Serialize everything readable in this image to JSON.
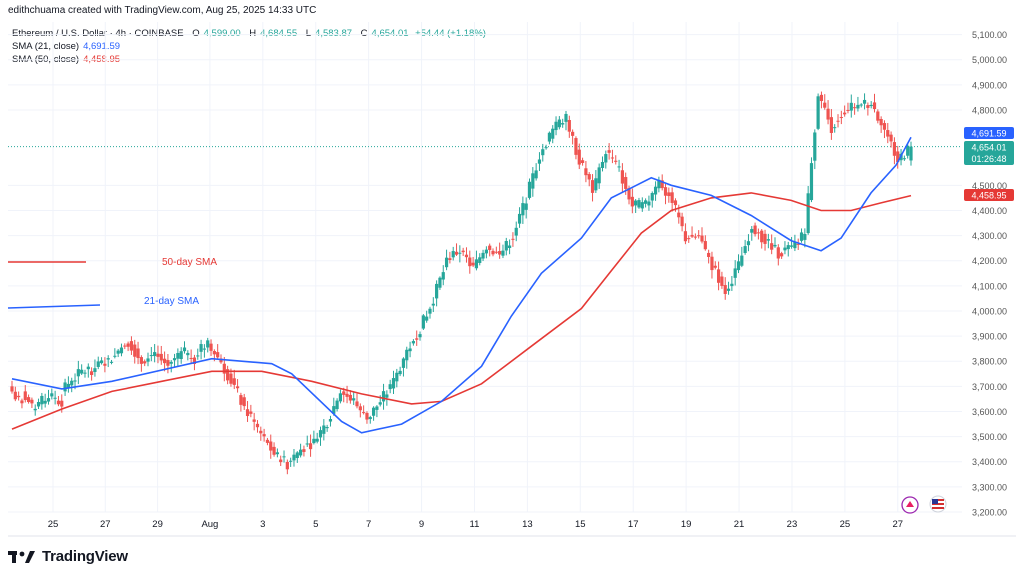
{
  "header": {
    "attribution": "edithchuama created with TradingView.com, Aug 25, 2025 14:33 UTC"
  },
  "legend": {
    "symbol": "Ethereum / U.S. Dollar · 4h · COINBASE",
    "o_label": "O",
    "o_value": "4,599.00",
    "h_label": "H",
    "h_value": "4,684.55",
    "l_label": "L",
    "l_value": "4,583.87",
    "c_label": "C",
    "c_value": "4,654.01",
    "change": "+54.44 (+1.18%)",
    "sma21_label": "SMA (21, close)",
    "sma21_value": "4,691.59",
    "sma50_label": "SMA (50, close)",
    "sma50_value": "4,458.95"
  },
  "brand": {
    "name": "TradingView"
  },
  "colors": {
    "up": "#26a69a",
    "down": "#ef5350",
    "sma21": "#2962ff",
    "sma50": "#e53935",
    "price_line": "#26a69a",
    "grid": "#f0f3fa",
    "text": "#131722",
    "axis_text": "#555"
  },
  "chart_data": {
    "type": "candlestick",
    "title": "Ethereum / U.S. Dollar · 4h · COINBASE",
    "ylim": [
      3200,
      5150
    ],
    "y_ticks": [
      "3,200.00",
      "3,300.00",
      "3,400.00",
      "3,500.00",
      "3,600.00",
      "3,700.00",
      "3,800.00",
      "3,900.00",
      "4,000.00",
      "4,100.00",
      "4,200.00",
      "4,300.00",
      "4,400.00",
      "4,500.00",
      "4,800.00",
      "4,900.00",
      "5,000.00",
      "5,100.00"
    ],
    "x_ticks": [
      "25",
      "27",
      "29",
      "Aug",
      "3",
      "5",
      "7",
      "9",
      "11",
      "13",
      "15",
      "17",
      "19",
      "21",
      "23",
      "25",
      "27"
    ],
    "price_labels": [
      {
        "value": 4691.59,
        "text": "4,691.59",
        "color": "#2962ff"
      },
      {
        "value": 4654.01,
        "text": "4,654.01",
        "sub": "01:26:48",
        "color": "#26a69a"
      },
      {
        "value": 4458.95,
        "text": "4,458.95",
        "color": "#e53935"
      }
    ],
    "annotations": [
      {
        "text": "50-day SMA",
        "color": "#e53935"
      },
      {
        "text": "21-day SMA",
        "color": "#2962ff"
      }
    ],
    "path_points": [
      [
        3700,
        3620
      ],
      [
        3680,
        3590
      ],
      [
        3620,
        3660
      ],
      [
        3660,
        3640
      ],
      [
        3680,
        3740
      ],
      [
        3740,
        3770
      ],
      [
        3760,
        3790
      ],
      [
        3790,
        3820
      ],
      [
        3830,
        3880
      ],
      [
        3880,
        3800
      ],
      [
        3800,
        3840
      ],
      [
        3830,
        3780
      ],
      [
        3790,
        3830
      ],
      [
        3840,
        3810
      ],
      [
        3820,
        3880
      ],
      [
        3870,
        3800
      ],
      [
        3790,
        3700
      ],
      [
        3700,
        3590
      ],
      [
        3600,
        3510
      ],
      [
        3510,
        3430
      ],
      [
        3430,
        3390
      ],
      [
        3400,
        3450
      ],
      [
        3450,
        3480
      ],
      [
        3480,
        3560
      ],
      [
        3560,
        3680
      ],
      [
        3680,
        3640
      ],
      [
        3640,
        3570
      ],
      [
        3570,
        3640
      ],
      [
        3640,
        3720
      ],
      [
        3720,
        3840
      ],
      [
        3840,
        3930
      ],
      [
        3930,
        4050
      ],
      [
        4050,
        4200
      ],
      [
        4210,
        4240
      ],
      [
        4240,
        4170
      ],
      [
        4170,
        4260
      ],
      [
        4260,
        4220
      ],
      [
        4220,
        4300
      ],
      [
        4300,
        4450
      ],
      [
        4450,
        4620
      ],
      [
        4620,
        4720
      ],
      [
        4720,
        4780
      ],
      [
        4760,
        4600
      ],
      [
        4600,
        4480
      ],
      [
        4480,
        4640
      ],
      [
        4640,
        4560
      ],
      [
        4560,
        4420
      ],
      [
        4420,
        4420
      ],
      [
        4420,
        4520
      ],
      [
        4520,
        4440
      ],
      [
        4440,
        4290
      ],
      [
        4290,
        4300
      ],
      [
        4300,
        4180
      ],
      [
        4180,
        4080
      ],
      [
        4080,
        4180
      ],
      [
        4180,
        4340
      ],
      [
        4340,
        4280
      ],
      [
        4280,
        4230
      ],
      [
        4230,
        4250
      ],
      [
        4250,
        4310
      ],
      [
        4310,
        4870
      ],
      [
        4860,
        4730
      ],
      [
        4730,
        4800
      ],
      [
        4800,
        4820
      ],
      [
        4820,
        4830
      ],
      [
        4830,
        4720
      ],
      [
        4720,
        4600
      ],
      [
        4600,
        4654.01
      ]
    ],
    "sma21": [
      [
        0,
        3730
      ],
      [
        0.05,
        3690
      ],
      [
        0.1,
        3720
      ],
      [
        0.2,
        3810
      ],
      [
        0.26,
        3790
      ],
      [
        0.28,
        3750
      ],
      [
        0.33,
        3560
      ],
      [
        0.35,
        3515
      ],
      [
        0.39,
        3550
      ],
      [
        0.43,
        3640
      ],
      [
        0.47,
        3780
      ],
      [
        0.5,
        3980
      ],
      [
        0.53,
        4150
      ],
      [
        0.57,
        4290
      ],
      [
        0.6,
        4450
      ],
      [
        0.64,
        4530
      ],
      [
        0.66,
        4500
      ],
      [
        0.7,
        4460
      ],
      [
        0.74,
        4380
      ],
      [
        0.78,
        4280
      ],
      [
        0.81,
        4240
      ],
      [
        0.83,
        4290
      ],
      [
        0.86,
        4470
      ],
      [
        0.885,
        4580
      ],
      [
        0.9,
        4691.59
      ]
    ],
    "sma50": [
      [
        0,
        3530
      ],
      [
        0.05,
        3610
      ],
      [
        0.1,
        3680
      ],
      [
        0.15,
        3720
      ],
      [
        0.2,
        3760
      ],
      [
        0.25,
        3760
      ],
      [
        0.3,
        3720
      ],
      [
        0.35,
        3670
      ],
      [
        0.4,
        3630
      ],
      [
        0.43,
        3640
      ],
      [
        0.47,
        3710
      ],
      [
        0.52,
        3860
      ],
      [
        0.57,
        4010
      ],
      [
        0.6,
        4160
      ],
      [
        0.63,
        4310
      ],
      [
        0.66,
        4400
      ],
      [
        0.7,
        4450
      ],
      [
        0.74,
        4470
      ],
      [
        0.78,
        4440
      ],
      [
        0.81,
        4400
      ],
      [
        0.84,
        4400
      ],
      [
        0.87,
        4430
      ],
      [
        0.9,
        4458.95
      ]
    ]
  }
}
